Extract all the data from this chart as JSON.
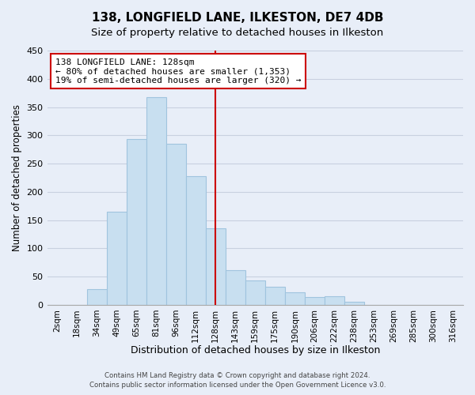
{
  "title": "138, LONGFIELD LANE, ILKESTON, DE7 4DB",
  "subtitle": "Size of property relative to detached houses in Ilkeston",
  "xlabel": "Distribution of detached houses by size in Ilkeston",
  "ylabel": "Number of detached properties",
  "bar_labels": [
    "2sqm",
    "18sqm",
    "34sqm",
    "49sqm",
    "65sqm",
    "81sqm",
    "96sqm",
    "112sqm",
    "128sqm",
    "143sqm",
    "159sqm",
    "175sqm",
    "190sqm",
    "206sqm",
    "222sqm",
    "238sqm",
    "253sqm",
    "269sqm",
    "285sqm",
    "300sqm",
    "316sqm"
  ],
  "bar_values": [
    0,
    0,
    28,
    165,
    293,
    367,
    285,
    228,
    135,
    62,
    43,
    32,
    22,
    14,
    15,
    5,
    0,
    0,
    0,
    0,
    0
  ],
  "bar_color": "#c8dff0",
  "bar_edge_color": "#a0c4de",
  "vline_x_idx": 8,
  "vline_color": "#cc0000",
  "annotation_title": "138 LONGFIELD LANE: 128sqm",
  "annotation_line1": "← 80% of detached houses are smaller (1,353)",
  "annotation_line2": "19% of semi-detached houses are larger (320) →",
  "annotation_box_edgecolor": "#cc0000",
  "ylim": [
    0,
    450
  ],
  "yticks": [
    0,
    50,
    100,
    150,
    200,
    250,
    300,
    350,
    400,
    450
  ],
  "footer_line1": "Contains HM Land Registry data © Crown copyright and database right 2024.",
  "footer_line2": "Contains public sector information licensed under the Open Government Licence v3.0.",
  "bg_color": "#e8eef8",
  "grid_color": "#c8d0e0",
  "title_fontsize": 11,
  "subtitle_fontsize": 9.5
}
